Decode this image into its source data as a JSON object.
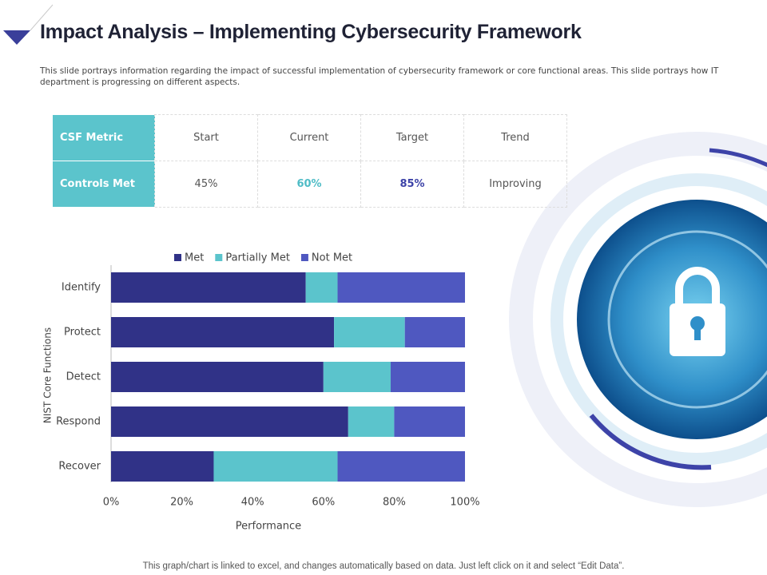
{
  "header": {
    "title": "Impact Analysis – Implementing Cybersecurity Framework",
    "subtitle": "This slide portrays information regarding the impact of successful implementation of cybersecurity framework or core functional areas. This slide portrays how IT department  is progressing on different aspects."
  },
  "table": {
    "rows": [
      [
        "CSF Metric",
        "Start",
        "Current",
        "Target",
        "Trend"
      ],
      [
        "Controls Met",
        "45%",
        "60%",
        "85%",
        "Improving"
      ]
    ]
  },
  "chart_data": {
    "type": "stacked-bar-horizontal",
    "categories": [
      "Identify",
      "Protect",
      "Detect",
      "Respond",
      "Recover"
    ],
    "series": [
      {
        "name": "Met",
        "color": "#303287",
        "values": [
          55,
          63,
          60,
          67,
          29
        ]
      },
      {
        "name": "Partially Met",
        "color": "#5bc4cc",
        "values": [
          9,
          20,
          19,
          13,
          35
        ]
      },
      {
        "name": "Not Met",
        "color": "#4f58c0",
        "values": [
          36,
          17,
          21,
          20,
          36
        ]
      }
    ],
    "xlim": [
      0,
      100
    ],
    "xticks": [
      {
        "value": 0,
        "label": "0%"
      },
      {
        "value": 20,
        "label": "20%"
      },
      {
        "value": 40,
        "label": "40%"
      },
      {
        "value": 60,
        "label": "60%"
      },
      {
        "value": 80,
        "label": "80%"
      },
      {
        "value": 100,
        "label": "100%"
      }
    ],
    "xlabel": "Performance",
    "ylabel": "NIST Core Functions",
    "legend": "top"
  },
  "footer": "This graph/chart is linked to excel, and changes automatically based on data. Just left click on it and select “Edit Data”."
}
